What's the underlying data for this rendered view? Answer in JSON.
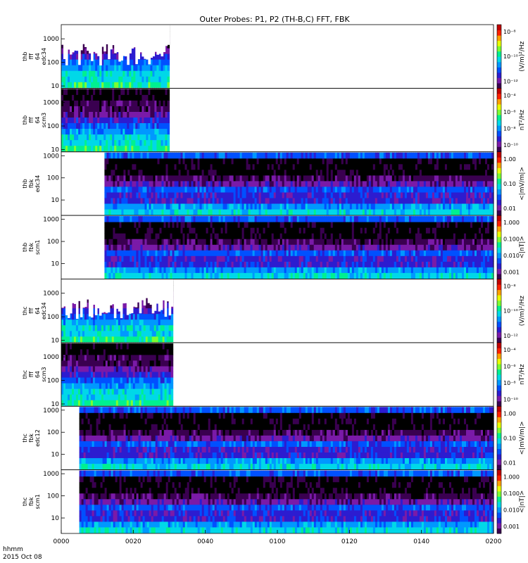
{
  "title": "Outer Probes: P1, P2 (TH-B,C) FFT, FBK",
  "time_axis": {
    "ticks": [
      "0000",
      "0020",
      "0040",
      "0100",
      "0120",
      "0140",
      "0200"
    ],
    "range_minutes": [
      0,
      120
    ],
    "unit_label": "hhmm",
    "date_label": "2015 Oct 08"
  },
  "colors": {
    "palette": [
      "#ffffff",
      "#000000",
      "#3a0050",
      "#7a1aa8",
      "#2c1cd0",
      "#0050ff",
      "#0098ff",
      "#00d8e8",
      "#00f090",
      "#7cff30",
      "#e8ff00",
      "#ffa000",
      "#ff2000",
      "#c00000"
    ]
  },
  "chart_data": [
    {
      "type": "heatmap",
      "probe": "thb",
      "instrument": "fff",
      "bands": "64",
      "channel": "edc34",
      "ylabels": [
        "thb",
        "fff",
        "64",
        "edc34"
      ],
      "y_ticks": [
        "10",
        "100",
        "1000"
      ],
      "y_scale": "log",
      "ylim": [
        8,
        4000
      ],
      "x_extent_minutes": [
        0,
        30
      ],
      "colorbar_ticks": [
        "10⁻⁸",
        "10⁻¹⁰",
        "10⁻¹²"
      ],
      "colorbar_label": "(V/m)²/Hz"
    },
    {
      "type": "heatmap",
      "probe": "thb",
      "instrument": "fff",
      "bands": "64",
      "channel": "scm3",
      "ylabels": [
        "thb",
        "fff",
        "64",
        "scm3"
      ],
      "y_ticks": [
        "10",
        "100",
        "1000"
      ],
      "y_scale": "log",
      "ylim": [
        8,
        4000
      ],
      "x_extent_minutes": [
        0,
        30
      ],
      "colorbar_ticks": [
        "10⁻⁴",
        "10⁻⁶",
        "10⁻⁸",
        "10⁻¹⁰"
      ],
      "colorbar_label": "nT²/Hz"
    },
    {
      "type": "heatmap",
      "probe": "thb",
      "instrument": "fbk",
      "channel": "edc34",
      "ylabels": [
        "thb",
        "fbk",
        "edc34"
      ],
      "y_ticks": [
        "10",
        "100",
        "1000"
      ],
      "y_scale": "log",
      "ylim": [
        2,
        1500
      ],
      "x_extent_minutes": [
        12,
        120
      ],
      "colorbar_ticks": [
        "1.00",
        "0.10",
        "0.01"
      ],
      "colorbar_label": "<|mV/m|>"
    },
    {
      "type": "heatmap",
      "probe": "thb",
      "instrument": "fbk",
      "channel": "scm1",
      "ylabels": [
        "thb",
        "fbk",
        "scm1"
      ],
      "y_ticks": [
        "10",
        "100",
        "1000"
      ],
      "y_scale": "log",
      "ylim": [
        2,
        1500
      ],
      "x_extent_minutes": [
        12,
        120
      ],
      "colorbar_ticks": [
        "1.000",
        "0.100",
        "0.010",
        "0.001"
      ],
      "colorbar_label": "<|nT|>"
    },
    {
      "type": "heatmap",
      "probe": "thc",
      "instrument": "fff",
      "bands": "64",
      "channel": "edc34",
      "ylabels": [
        "thc",
        "fff",
        "64",
        "edc34"
      ],
      "y_ticks": [
        "10",
        "100",
        "1000"
      ],
      "y_scale": "log",
      "ylim": [
        8,
        4000
      ],
      "x_extent_minutes": [
        0,
        31
      ],
      "colorbar_ticks": [
        "10⁻⁸",
        "10⁻¹⁰",
        "10⁻¹²"
      ],
      "colorbar_label": "(V/m)²/Hz"
    },
    {
      "type": "heatmap",
      "probe": "thc",
      "instrument": "fff",
      "bands": "64",
      "channel": "scm3",
      "ylabels": [
        "thc",
        "fff",
        "64",
        "scm3"
      ],
      "y_ticks": [
        "10",
        "100",
        "1000"
      ],
      "y_scale": "log",
      "ylim": [
        8,
        4000
      ],
      "x_extent_minutes": [
        0,
        31
      ],
      "colorbar_ticks": [
        "10⁻⁴",
        "10⁻⁶",
        "10⁻⁸",
        "10⁻¹⁰"
      ],
      "colorbar_label": "nT²/Hz"
    },
    {
      "type": "heatmap",
      "probe": "thc",
      "instrument": "fbk",
      "channel": "edc12",
      "ylabels": [
        "thc",
        "fbk",
        "edc12"
      ],
      "y_ticks": [
        "10",
        "100",
        "1000"
      ],
      "y_scale": "log",
      "ylim": [
        2,
        1500
      ],
      "x_extent_minutes": [
        5,
        120
      ],
      "colorbar_ticks": [
        "1.00",
        "0.10",
        "0.01"
      ],
      "colorbar_label": "<|mV/m|>"
    },
    {
      "type": "heatmap",
      "probe": "thc",
      "instrument": "fbk",
      "channel": "scm1",
      "ylabels": [
        "thc",
        "fbk",
        "scm1"
      ],
      "y_ticks": [
        "10",
        "100",
        "1000"
      ],
      "y_scale": "log",
      "ylim": [
        2,
        1500
      ],
      "x_extent_minutes": [
        5,
        120
      ],
      "colorbar_ticks": [
        "1.000",
        "0.100",
        "0.010",
        "0.001"
      ],
      "colorbar_label": "<|nT|>"
    }
  ]
}
